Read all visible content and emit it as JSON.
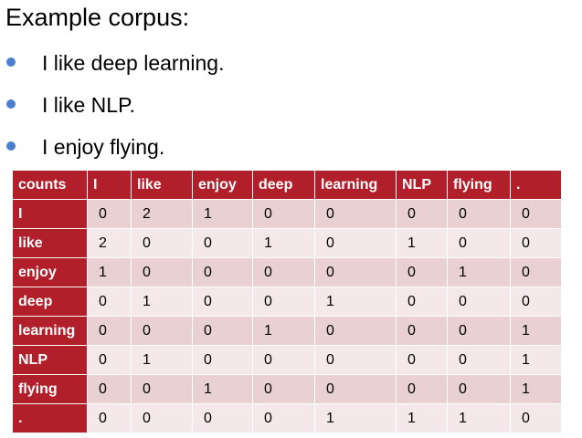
{
  "title": "Example corpus:",
  "bullets": [
    "I like deep learning.",
    "I like NLP.",
    "I enjoy flying."
  ],
  "table": {
    "corner": "counts",
    "columns": [
      "I",
      "like",
      "enjoy",
      "deep",
      "learning",
      "NLP",
      "flying",
      "."
    ],
    "rows": [
      {
        "label": "I",
        "values": [
          "0",
          "2",
          "1",
          "0",
          "0",
          "0",
          "0",
          "0"
        ]
      },
      {
        "label": "like",
        "values": [
          "2",
          "0",
          "0",
          "1",
          "0",
          "1",
          "0",
          "0"
        ]
      },
      {
        "label": "enjoy",
        "values": [
          "1",
          "0",
          "0",
          "0",
          "0",
          "0",
          "1",
          "0"
        ]
      },
      {
        "label": "deep",
        "values": [
          "0",
          "1",
          "0",
          "0",
          "1",
          "0",
          "0",
          "0"
        ]
      },
      {
        "label": "learning",
        "values": [
          "0",
          "0",
          "0",
          "1",
          "0",
          "0",
          "0",
          "1"
        ]
      },
      {
        "label": "NLP",
        "values": [
          "0",
          "1",
          "0",
          "0",
          "0",
          "0",
          "0",
          "1"
        ]
      },
      {
        "label": "flying",
        "values": [
          "0",
          "0",
          "1",
          "0",
          "0",
          "0",
          "0",
          "1"
        ]
      },
      {
        "label": ".",
        "values": [
          "0",
          "0",
          "0",
          "0",
          "1",
          "1",
          "1",
          "0"
        ]
      }
    ]
  },
  "colors": {
    "header_red": "#b11f2b",
    "band_dark": "#e8d0d3",
    "band_light": "#f4e8ea",
    "bullet_blue": "#4a7fd0"
  }
}
